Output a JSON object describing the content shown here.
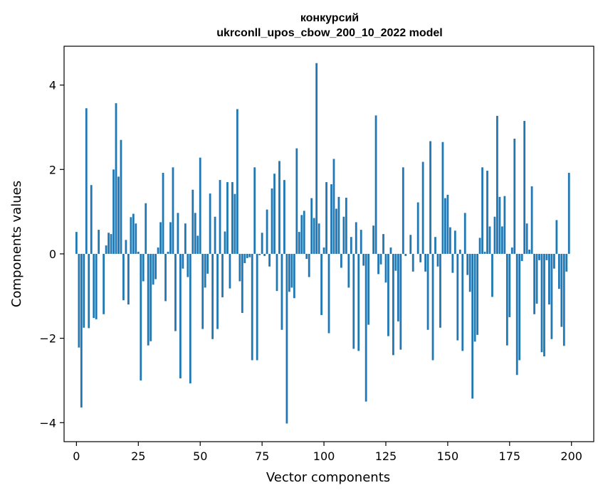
{
  "chart_data": {
    "type": "bar",
    "title_line1": "конкурсий",
    "title_line2": "ukrconll_upos_cbow_200_10_2022 model",
    "xlabel": "Vector components",
    "ylabel": "Components values",
    "xlim": [
      -5,
      209
    ],
    "ylim": [
      -4.45,
      4.92
    ],
    "xticks": [
      0,
      25,
      50,
      75,
      100,
      125,
      150,
      175,
      200
    ],
    "yticks": [
      -4,
      -2,
      0,
      2,
      4
    ],
    "ytick_labels": [
      "−4",
      "−2",
      "0",
      "2",
      "4"
    ],
    "bar_color": "#1f77b4",
    "grid": false,
    "values": [
      0.52,
      -2.22,
      -3.64,
      -1.75,
      3.45,
      -1.76,
      1.63,
      -1.52,
      -1.55,
      0.57,
      0.0,
      -1.43,
      0.2,
      0.5,
      0.47,
      2.0,
      3.57,
      1.83,
      2.7,
      -1.1,
      0.33,
      -1.2,
      0.87,
      0.95,
      0.72,
      0.05,
      -3.0,
      -0.65,
      1.2,
      -2.17,
      -2.07,
      -0.73,
      -0.6,
      0.15,
      0.75,
      1.92,
      -1.12,
      0.05,
      0.75,
      2.05,
      -1.83,
      0.97,
      -2.95,
      -0.35,
      0.72,
      -0.55,
      -3.07,
      1.52,
      0.97,
      0.43,
      2.28,
      -1.78,
      -0.8,
      -0.47,
      1.43,
      -2.02,
      0.88,
      -1.78,
      1.75,
      -1.03,
      0.53,
      1.7,
      -0.82,
      1.7,
      1.42,
      3.43,
      -0.65,
      -1.4,
      -0.22,
      -0.1,
      -0.08,
      -2.52,
      2.05,
      -2.52,
      -0.03,
      0.5,
      -0.05,
      1.05,
      -0.3,
      1.55,
      1.9,
      -0.88,
      2.2,
      -1.8,
      1.75,
      -4.02,
      -0.9,
      -0.8,
      -1.05,
      2.5,
      0.52,
      0.92,
      1.02,
      -0.12,
      -0.55,
      1.32,
      0.85,
      4.52,
      0.72,
      -1.45,
      0.15,
      1.7,
      -1.88,
      1.65,
      2.25,
      1.07,
      1.35,
      -0.33,
      0.88,
      1.33,
      -0.8,
      0.4,
      -2.25,
      0.75,
      -2.3,
      0.57,
      -0.28,
      -3.5,
      -1.68,
      0.0,
      0.67,
      3.28,
      -0.48,
      -0.25,
      0.47,
      -0.68,
      -1.95,
      0.15,
      -2.4,
      -0.4,
      -1.6,
      -2.27,
      2.05,
      -0.05,
      0.0,
      0.45,
      -0.42,
      0.0,
      1.22,
      -0.2,
      2.18,
      -0.42,
      -1.8,
      2.67,
      -2.52,
      0.4,
      -0.3,
      -1.75,
      2.65,
      1.32,
      1.4,
      0.63,
      -0.45,
      0.55,
      -2.05,
      0.1,
      -2.3,
      0.97,
      -0.5,
      -0.9,
      -3.43,
      -2.08,
      -1.92,
      0.38,
      2.05,
      0.05,
      1.97,
      0.65,
      -1.02,
      0.88,
      3.27,
      1.35,
      0.65,
      1.37,
      -2.17,
      -1.5,
      0.15,
      2.73,
      -2.87,
      -2.52,
      -0.17,
      3.15,
      0.72,
      0.1,
      1.6,
      -1.43,
      -1.18,
      -0.15,
      -2.33,
      -2.43,
      -0.15,
      -1.2,
      -2.02,
      -0.35,
      0.8,
      -0.83,
      -1.73,
      -2.18,
      -0.42,
      1.92
    ]
  }
}
